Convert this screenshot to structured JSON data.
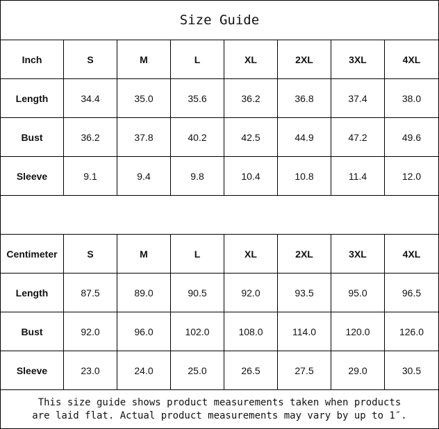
{
  "title": "Size Guide",
  "inch_table": {
    "headers": [
      "Inch",
      "S",
      "M",
      "L",
      "XL",
      "2XL",
      "3XL",
      "4XL"
    ],
    "rows": [
      [
        "Length",
        "34.4",
        "35.0",
        "35.6",
        "36.2",
        "36.8",
        "37.4",
        "38.0"
      ],
      [
        "Bust",
        "36.2",
        "37.8",
        "40.2",
        "42.5",
        "44.9",
        "47.2",
        "49.6"
      ],
      [
        "Sleeve",
        "9.1",
        "9.4",
        "9.8",
        "10.4",
        "10.8",
        "11.4",
        "12.0"
      ]
    ]
  },
  "cm_table": {
    "headers": [
      "Centimeter",
      "S",
      "M",
      "L",
      "XL",
      "2XL",
      "3XL",
      "4XL"
    ],
    "rows": [
      [
        "Length",
        "87.5",
        "89.0",
        "90.5",
        "92.0",
        "93.5",
        "95.0",
        "96.5"
      ],
      [
        "Bust",
        "92.0",
        "96.0",
        "102.0",
        "108.0",
        "114.0",
        "120.0",
        "126.0"
      ],
      [
        "Sleeve",
        "23.0",
        "24.0",
        "25.0",
        "26.5",
        "27.5",
        "29.0",
        "30.5"
      ]
    ]
  },
  "note": {
    "line1": "This size guide shows product measurements taken when products",
    "line2": "are laid flat. Actual product measurements may vary by up to 1″."
  }
}
